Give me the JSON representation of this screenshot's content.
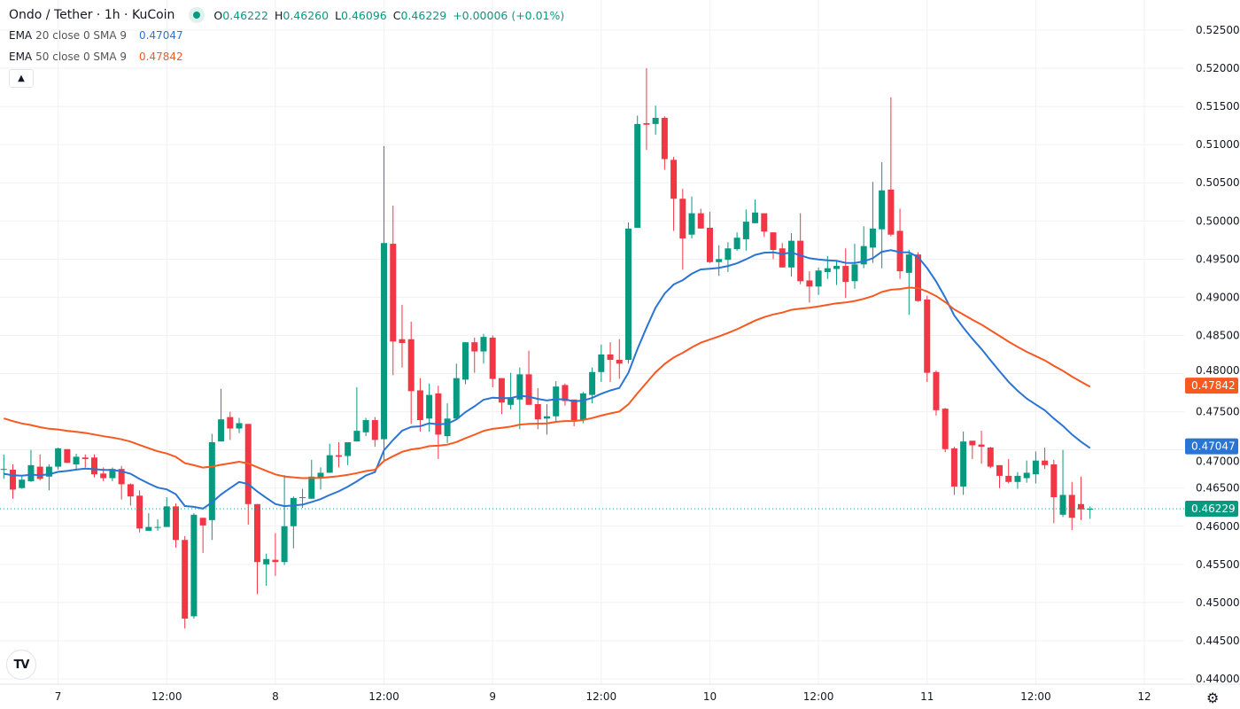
{
  "header": {
    "title": "Ondo / Tether · 1h · KuCoin",
    "ohlc": {
      "o_label": "O",
      "o": "0.46222",
      "h_label": "H",
      "h": "0.46260",
      "l_label": "L",
      "l": "0.46096",
      "c_label": "C",
      "c": "0.46229",
      "change": "+0.00006 (+0.01%)"
    },
    "ema20": {
      "name": "EMA",
      "params": "20 close 0 SMA 9",
      "value": "0.47047"
    },
    "ema50": {
      "name": "EMA",
      "params": "50 close 0 SMA 9",
      "value": "0.47842"
    },
    "collapse_icon": "chevron-up-icon",
    "logo": "TV"
  },
  "colors": {
    "up": "#089981",
    "down": "#f23645",
    "ema20": "#2a74d4",
    "ema50": "#f9581f",
    "grid": "#f0f1f4",
    "text": "#131722"
  },
  "chart_data": {
    "type": "candlestick",
    "title": "Ondo / Tether · 1h · KuCoin",
    "ylim": [
      0.4375,
      0.5275
    ],
    "price_ticks": [
      "0.52500",
      "0.52000",
      "0.51500",
      "0.51000",
      "0.50500",
      "0.50000",
      "0.49500",
      "0.49000",
      "0.48500",
      "0.48000",
      "0.47500",
      "0.47000",
      "0.46500",
      "0.46000",
      "0.45500",
      "0.45000",
      "0.44500",
      "0.44000"
    ],
    "time_ticks": [
      {
        "label": "7",
        "index": 6
      },
      {
        "label": "12:00",
        "index": 18
      },
      {
        "label": "8",
        "index": 30
      },
      {
        "label": "12:00",
        "index": 42
      },
      {
        "label": "9",
        "index": 54
      },
      {
        "label": "12:00",
        "index": 66
      },
      {
        "label": "10",
        "index": 78
      },
      {
        "label": "12:00",
        "index": 90
      },
      {
        "label": "11",
        "index": 102
      },
      {
        "label": "12:00",
        "index": 114
      },
      {
        "label": "12",
        "index": 126
      }
    ],
    "last_price": {
      "value": 0.46229,
      "label": "0.46229"
    },
    "ema_labels": [
      {
        "value": 0.47842,
        "label": "0.47842",
        "series": "ema50"
      },
      {
        "value": 0.47047,
        "label": "0.47047",
        "series": "ema20"
      }
    ],
    "ema_seed": {
      "ema20": 0.4668,
      "ema50": 0.4744
    },
    "candles_ohlc": [
      [
        0.4674,
        0.4694,
        0.4662,
        0.4675
      ],
      [
        0.4674,
        0.4681,
        0.4636,
        0.4648
      ],
      [
        0.465,
        0.4665,
        0.4649,
        0.4661
      ],
      [
        0.4659,
        0.47,
        0.4658,
        0.468
      ],
      [
        0.4678,
        0.4694,
        0.466,
        0.4662
      ],
      [
        0.4665,
        0.4681,
        0.4647,
        0.4678
      ],
      [
        0.4678,
        0.4703,
        0.4674,
        0.4702
      ],
      [
        0.4701,
        0.4701,
        0.4683,
        0.4683
      ],
      [
        0.4681,
        0.4695,
        0.4675,
        0.4691
      ],
      [
        0.469,
        0.4694,
        0.4677,
        0.4688
      ],
      [
        0.469,
        0.4694,
        0.4664,
        0.4668
      ],
      [
        0.4669,
        0.4677,
        0.4659,
        0.4663
      ],
      [
        0.4663,
        0.4677,
        0.4659,
        0.4675
      ],
      [
        0.4675,
        0.4679,
        0.4635,
        0.4655
      ],
      [
        0.4655,
        0.4656,
        0.4627,
        0.4639
      ],
      [
        0.464,
        0.4647,
        0.4592,
        0.4597
      ],
      [
        0.4594,
        0.4617,
        0.4594,
        0.4599
      ],
      [
        0.4598,
        0.4609,
        0.4594,
        0.4599
      ],
      [
        0.4599,
        0.4638,
        0.4599,
        0.4626
      ],
      [
        0.4626,
        0.463,
        0.4572,
        0.4582
      ],
      [
        0.4582,
        0.4587,
        0.4466,
        0.4479
      ],
      [
        0.4482,
        0.4617,
        0.4479,
        0.4615
      ],
      [
        0.4611,
        0.4611,
        0.4565,
        0.4601
      ],
      [
        0.4608,
        0.4721,
        0.4582,
        0.471
      ],
      [
        0.4711,
        0.478,
        0.4711,
        0.474
      ],
      [
        0.4743,
        0.475,
        0.4713,
        0.4728
      ],
      [
        0.4728,
        0.4742,
        0.4722,
        0.4735
      ],
      [
        0.4734,
        0.4734,
        0.4602,
        0.4629
      ],
      [
        0.4629,
        0.4629,
        0.4511,
        0.4553
      ],
      [
        0.455,
        0.4564,
        0.4522,
        0.4557
      ],
      [
        0.4556,
        0.4591,
        0.4535,
        0.4553
      ],
      [
        0.4553,
        0.4667,
        0.4549,
        0.46
      ],
      [
        0.46,
        0.4639,
        0.4571,
        0.4637
      ],
      [
        0.4637,
        0.4649,
        0.4624,
        0.4638
      ],
      [
        0.4636,
        0.4687,
        0.4636,
        0.4665
      ],
      [
        0.4663,
        0.4677,
        0.4648,
        0.467
      ],
      [
        0.467,
        0.4708,
        0.467,
        0.4693
      ],
      [
        0.4693,
        0.471,
        0.4677,
        0.4691
      ],
      [
        0.4692,
        0.471,
        0.468,
        0.471
      ],
      [
        0.4711,
        0.4782,
        0.4711,
        0.4725
      ],
      [
        0.4723,
        0.4742,
        0.4718,
        0.4739
      ],
      [
        0.4739,
        0.4743,
        0.4704,
        0.4713
      ],
      [
        0.4714,
        0.5098,
        0.4686,
        0.4971
      ],
      [
        0.497,
        0.502,
        0.4798,
        0.4842
      ],
      [
        0.4845,
        0.489,
        0.4808,
        0.484
      ],
      [
        0.4845,
        0.4868,
        0.4734,
        0.4777
      ],
      [
        0.4778,
        0.4794,
        0.4724,
        0.4739
      ],
      [
        0.4741,
        0.4787,
        0.4724,
        0.4772
      ],
      [
        0.4774,
        0.4784,
        0.4688,
        0.472
      ],
      [
        0.4718,
        0.4761,
        0.4709,
        0.4741
      ],
      [
        0.4741,
        0.4813,
        0.4741,
        0.4794
      ],
      [
        0.4792,
        0.4841,
        0.4786,
        0.4841
      ],
      [
        0.4841,
        0.4847,
        0.4801,
        0.4829
      ],
      [
        0.4829,
        0.4852,
        0.4813,
        0.4848
      ],
      [
        0.4847,
        0.485,
        0.4782,
        0.4793
      ],
      [
        0.4794,
        0.4794,
        0.4747,
        0.4762
      ],
      [
        0.4759,
        0.4801,
        0.4753,
        0.4769
      ],
      [
        0.4766,
        0.4808,
        0.4727,
        0.4799
      ],
      [
        0.4799,
        0.483,
        0.4759,
        0.4759
      ],
      [
        0.476,
        0.4781,
        0.4727,
        0.474
      ],
      [
        0.4741,
        0.476,
        0.472,
        0.4744
      ],
      [
        0.4744,
        0.479,
        0.4736,
        0.4783
      ],
      [
        0.4785,
        0.4787,
        0.4758,
        0.4764
      ],
      [
        0.4766,
        0.4766,
        0.4731,
        0.4739
      ],
      [
        0.4739,
        0.4776,
        0.4735,
        0.4774
      ],
      [
        0.4772,
        0.4808,
        0.4761,
        0.4802
      ],
      [
        0.4802,
        0.4838,
        0.4789,
        0.4825
      ],
      [
        0.4825,
        0.4841,
        0.4789,
        0.4818
      ],
      [
        0.4818,
        0.4845,
        0.4793,
        0.4813
      ],
      [
        0.4818,
        0.4998,
        0.4813,
        0.499
      ],
      [
        0.4991,
        0.5138,
        0.4991,
        0.5127
      ],
      [
        0.5128,
        0.52,
        0.5093,
        0.5126
      ],
      [
        0.5127,
        0.5151,
        0.5113,
        0.5135
      ],
      [
        0.5135,
        0.5137,
        0.5067,
        0.5081
      ],
      [
        0.508,
        0.5084,
        0.4987,
        0.5029
      ],
      [
        0.5029,
        0.5042,
        0.4936,
        0.4977
      ],
      [
        0.4982,
        0.5032,
        0.4977,
        0.501
      ],
      [
        0.501,
        0.5016,
        0.499,
        0.499
      ],
      [
        0.4991,
        0.5012,
        0.4945,
        0.4946
      ],
      [
        0.4946,
        0.4968,
        0.4928,
        0.495
      ],
      [
        0.4949,
        0.4972,
        0.4933,
        0.4964
      ],
      [
        0.4963,
        0.4985,
        0.4961,
        0.4978
      ],
      [
        0.4976,
        0.5015,
        0.4961,
        0.4999
      ],
      [
        0.4997,
        0.5028,
        0.4997,
        0.5011
      ],
      [
        0.501,
        0.501,
        0.4979,
        0.4986
      ],
      [
        0.4985,
        0.4985,
        0.495,
        0.4962
      ],
      [
        0.4964,
        0.4971,
        0.4939,
        0.4939
      ],
      [
        0.4939,
        0.4984,
        0.4927,
        0.4974
      ],
      [
        0.4974,
        0.501,
        0.4917,
        0.4921
      ],
      [
        0.4922,
        0.4934,
        0.4893,
        0.4914
      ],
      [
        0.4914,
        0.4939,
        0.4903,
        0.4935
      ],
      [
        0.4933,
        0.4954,
        0.4924,
        0.4938
      ],
      [
        0.4937,
        0.4948,
        0.4916,
        0.4941
      ],
      [
        0.4941,
        0.4964,
        0.4899,
        0.492
      ],
      [
        0.4921,
        0.497,
        0.4911,
        0.4943
      ],
      [
        0.4943,
        0.4993,
        0.4938,
        0.4967
      ],
      [
        0.4965,
        0.5051,
        0.4945,
        0.499
      ],
      [
        0.4989,
        0.5077,
        0.4938,
        0.504
      ],
      [
        0.5041,
        0.5162,
        0.498,
        0.4982
      ],
      [
        0.4987,
        0.5016,
        0.4924,
        0.4934
      ],
      [
        0.4932,
        0.4962,
        0.4877,
        0.4956
      ],
      [
        0.4956,
        0.4959,
        0.4894,
        0.4895
      ],
      [
        0.4897,
        0.4902,
        0.4789,
        0.4801
      ],
      [
        0.4802,
        0.4804,
        0.4745,
        0.4752
      ],
      [
        0.4754,
        0.4755,
        0.4697,
        0.4701
      ],
      [
        0.4702,
        0.4704,
        0.4641,
        0.4652
      ],
      [
        0.4652,
        0.4724,
        0.4641,
        0.4711
      ],
      [
        0.4712,
        0.4712,
        0.4688,
        0.4706
      ],
      [
        0.4707,
        0.4725,
        0.4682,
        0.4704
      ],
      [
        0.4703,
        0.4704,
        0.4676,
        0.4678
      ],
      [
        0.468,
        0.468,
        0.465,
        0.4666
      ],
      [
        0.4666,
        0.4688,
        0.4656,
        0.4658
      ],
      [
        0.4658,
        0.4671,
        0.4649,
        0.4666
      ],
      [
        0.4663,
        0.4686,
        0.4657,
        0.467
      ],
      [
        0.4668,
        0.4698,
        0.4656,
        0.4686
      ],
      [
        0.4686,
        0.4703,
        0.4675,
        0.468
      ],
      [
        0.4681,
        0.4687,
        0.4604,
        0.4638
      ],
      [
        0.4615,
        0.47,
        0.4612,
        0.4641
      ],
      [
        0.4641,
        0.4658,
        0.4595,
        0.4611
      ],
      [
        0.4629,
        0.4665,
        0.4608,
        0.4622
      ],
      [
        0.46222,
        0.4626,
        0.46096,
        0.46229
      ]
    ]
  }
}
